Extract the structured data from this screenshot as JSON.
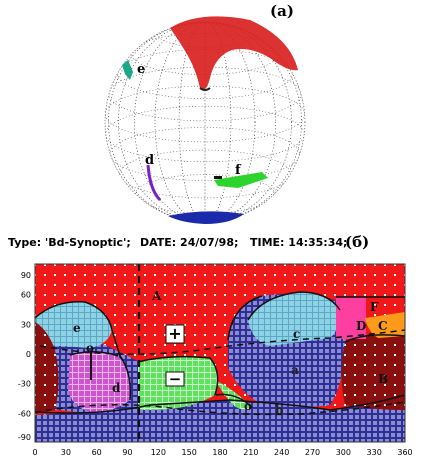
{
  "panel_a": {
    "label": "(a)",
    "region_labels": [
      "e",
      "d",
      "f"
    ]
  },
  "panel_b": {
    "label": "(б)",
    "header": {
      "type_text": "Type: 'Bd-Synoptic';",
      "date_text": "DATE: 24/07/98;",
      "time_text": "TIME: 14:35:34;"
    },
    "y_ticks": [
      "90",
      "60",
      "30",
      "0",
      "-30",
      "-60",
      "-90"
    ],
    "x_ticks": [
      "0",
      "30",
      "60",
      "90",
      "120",
      "150",
      "180",
      "210",
      "240",
      "270",
      "300",
      "330",
      "360"
    ],
    "region_labels": [
      "A",
      "e",
      "c",
      "d",
      "a",
      "b",
      "B",
      "D",
      "C",
      "F",
      "+",
      "−",
      "o",
      "o"
    ],
    "colors": {
      "north": "#f01818",
      "south": "#2e2e96",
      "cyan": "#8fd2e6",
      "magenta": "#cc55cc",
      "green": "#5ee25e",
      "dark_red": "#8a0f0f",
      "pink": "#ff3fa0",
      "orange": "#ff9a1a",
      "lavender": "#8a8cd0"
    }
  }
}
